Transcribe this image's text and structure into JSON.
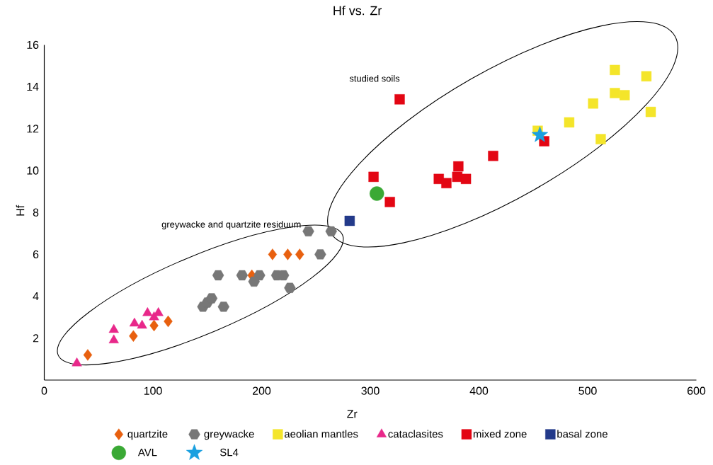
{
  "chart_data": {
    "type": "scatter",
    "title": "Hf vs. Zr",
    "xlabel": "Zr",
    "ylabel": "Hf",
    "xlim": [
      0,
      600
    ],
    "ylim": [
      0,
      16
    ],
    "xticks": [
      0,
      100,
      200,
      300,
      400,
      500,
      600
    ],
    "yticks": [
      2,
      4,
      6,
      8,
      10,
      12,
      14,
      16
    ],
    "legend": "bottom",
    "annotations": [
      "greywacke and quartzite residuum",
      "studied soils"
    ],
    "series": [
      {
        "name": "quartzite",
        "color": "#e8600f",
        "marker": "diamond",
        "x": [
          40,
          82,
          101,
          114,
          191,
          210,
          224,
          235
        ],
        "values": [
          1.2,
          2.1,
          2.6,
          2.8,
          5.0,
          6.0,
          6.0,
          6.0
        ]
      },
      {
        "name": "greywacke",
        "color": "#777777",
        "x": [
          243,
          264,
          254,
          160,
          182,
          198,
          193,
          214,
          220,
          226,
          146,
          150,
          154,
          165
        ],
        "values": [
          7.1,
          7.1,
          6.0,
          5.0,
          5.0,
          5.0,
          4.7,
          5.0,
          5.0,
          4.4,
          3.5,
          3.7,
          3.9,
          3.5
        ]
      },
      {
        "name": "aeolian mantles",
        "color": "#f4e52a",
        "marker": "square",
        "x": [
          454,
          483,
          505,
          512,
          525,
          525,
          534,
          554,
          558
        ],
        "values": [
          11.9,
          12.3,
          13.2,
          11.5,
          14.8,
          13.7,
          13.6,
          14.5,
          12.8
        ]
      },
      {
        "name": "cataclasites",
        "color": "#e8288a",
        "marker": "triangle",
        "x": [
          30,
          64,
          64,
          83,
          90,
          95,
          101,
          105
        ],
        "values": [
          0.8,
          2.4,
          1.9,
          2.7,
          2.6,
          3.2,
          3.0,
          3.2
        ]
      },
      {
        "name": "mixed zone",
        "color": "#e30613",
        "marker": "square",
        "x": [
          327,
          303,
          318,
          363,
          370,
          381,
          380,
          388,
          413,
          460
        ],
        "values": [
          13.4,
          9.7,
          8.5,
          9.6,
          9.4,
          10.2,
          9.7,
          9.6,
          10.7,
          11.4
        ]
      },
      {
        "name": "basal zone",
        "color": "#233a8a",
        "marker": "square",
        "x": [
          281
        ],
        "values": [
          7.6
        ]
      },
      {
        "name": "AVL",
        "color": "#3aa935",
        "marker": "circle",
        "x": [
          306
        ],
        "values": [
          8.9
        ]
      },
      {
        "name": "SL4",
        "color": "#1aa0e0",
        "marker": "star",
        "x": [
          456
        ],
        "values": [
          11.7
        ]
      }
    ]
  }
}
